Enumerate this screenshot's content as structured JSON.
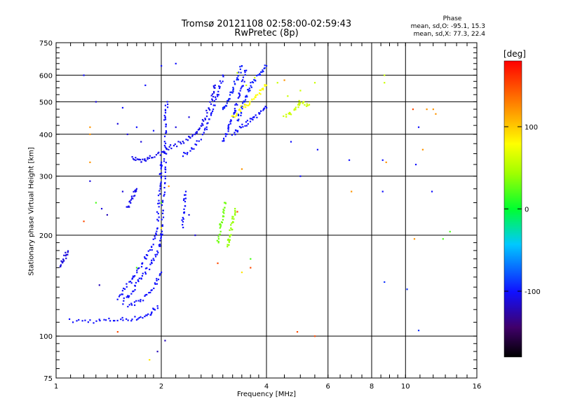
{
  "chart_data": {
    "type": "scatter",
    "title": "Tromsø 20121108 02:58:00-02:59:43",
    "subtitle": "RwPretec (8p)",
    "xlabel": "Frequency [MHz]",
    "ylabel": "Stationary phase Virtual Height [km]",
    "x_scale": "log",
    "y_scale": "log",
    "xlim": [
      1,
      16
    ],
    "ylim": [
      75,
      750
    ],
    "x_ticks": [
      1,
      2,
      4,
      6,
      8,
      10,
      16
    ],
    "x_tick_labels": [
      "1",
      "2",
      "4",
      "6",
      "8",
      "10",
      "16"
    ],
    "y_ticks": [
      75,
      100,
      200,
      300,
      400,
      500,
      600,
      750
    ],
    "y_tick_labels": [
      "75",
      "100",
      "200",
      "300",
      "400",
      "500",
      "600",
      "750"
    ],
    "grid": true,
    "phase_stats": {
      "title": "Phase",
      "o_line": "mean, sd,O: -95.1, 15.3",
      "x_line": "mean, sd,X:  77.3, 22.4"
    },
    "colorbar": {
      "label": "[deg]",
      "range": [
        -180,
        180
      ],
      "ticks": [
        100,
        0,
        -100
      ],
      "tick_labels": [
        "100",
        "0",
        "-100"
      ],
      "colormap": "rainbow (black-purple-blue-cyan-green-yellow-red)"
    },
    "traces": [
      {
        "kind": "line",
        "phase": -100,
        "points": [
          [
            1.1,
            111
          ],
          [
            1.3,
            111
          ],
          [
            1.5,
            112
          ],
          [
            1.7,
            113
          ],
          [
            1.85,
            116
          ],
          [
            1.95,
            123
          ]
        ]
      },
      {
        "kind": "line",
        "phase": -100,
        "points": [
          [
            1.55,
            126
          ],
          [
            1.65,
            136
          ],
          [
            1.75,
            148
          ],
          [
            1.85,
            162
          ],
          [
            1.95,
            178
          ],
          [
            2.0,
            200
          ]
        ]
      },
      {
        "kind": "line",
        "phase": -100,
        "points": [
          [
            1.5,
            130
          ],
          [
            1.6,
            142
          ],
          [
            1.7,
            155
          ],
          [
            1.8,
            170
          ],
          [
            1.9,
            190
          ],
          [
            1.95,
            210
          ]
        ]
      },
      {
        "kind": "line",
        "phase": -100,
        "points": [
          [
            1.6,
            122
          ],
          [
            1.75,
            128
          ],
          [
            1.9,
            140
          ],
          [
            2.0,
            155
          ]
        ]
      },
      {
        "kind": "line",
        "phase": -100,
        "points": [
          [
            2.0,
            200
          ],
          [
            2.02,
            240
          ],
          [
            2.04,
            290
          ],
          [
            2.05,
            340
          ],
          [
            2.06,
            400
          ],
          [
            2.05,
            450
          ],
          [
            2.08,
            500
          ]
        ]
      },
      {
        "kind": "line",
        "phase": -100,
        "points": [
          [
            1.95,
            220
          ],
          [
            1.97,
            260
          ],
          [
            1.99,
            300
          ],
          [
            2.0,
            330
          ]
        ]
      },
      {
        "kind": "line",
        "phase": -105,
        "points": [
          [
            1.65,
            340
          ],
          [
            1.75,
            334
          ],
          [
            1.85,
            340
          ],
          [
            2.0,
            352
          ],
          [
            2.1,
            365
          ],
          [
            2.3,
            380
          ],
          [
            2.5,
            400
          ],
          [
            2.6,
            420
          ],
          [
            2.7,
            460
          ],
          [
            2.8,
            520
          ],
          [
            2.85,
            560
          ]
        ]
      },
      {
        "kind": "line",
        "phase": -100,
        "points": [
          [
            2.3,
            345
          ],
          [
            2.5,
            370
          ],
          [
            2.7,
            420
          ],
          [
            2.8,
            470
          ],
          [
            2.9,
            530
          ],
          [
            3.0,
            600
          ]
        ]
      },
      {
        "kind": "line",
        "phase": -95,
        "points": [
          [
            3.0,
            470
          ],
          [
            3.1,
            500
          ],
          [
            3.2,
            540
          ],
          [
            3.3,
            590
          ],
          [
            3.4,
            640
          ]
        ]
      },
      {
        "kind": "line",
        "phase": -100,
        "points": [
          [
            3.0,
            380
          ],
          [
            3.1,
            410
          ],
          [
            3.2,
            450
          ],
          [
            3.3,
            500
          ],
          [
            3.4,
            560
          ],
          [
            3.5,
            620
          ]
        ]
      },
      {
        "kind": "line",
        "phase": -95,
        "points": [
          [
            3.3,
            440
          ],
          [
            3.4,
            480
          ],
          [
            3.5,
            520
          ],
          [
            3.6,
            560
          ],
          [
            3.8,
            600
          ],
          [
            4.0,
            640
          ]
        ]
      },
      {
        "kind": "line",
        "phase": -100,
        "points": [
          [
            3.2,
            400
          ],
          [
            3.4,
            420
          ],
          [
            3.6,
            440
          ],
          [
            3.8,
            460
          ],
          [
            4.0,
            480
          ]
        ]
      },
      {
        "kind": "line",
        "phase": 80,
        "points": [
          [
            3.2,
            450
          ],
          [
            3.4,
            480
          ],
          [
            3.6,
            500
          ],
          [
            3.8,
            530
          ],
          [
            4.0,
            560
          ]
        ]
      },
      {
        "kind": "line",
        "phase": -105,
        "points": [
          [
            1.6,
            240
          ],
          [
            1.65,
            260
          ],
          [
            1.7,
            275
          ]
        ]
      },
      {
        "kind": "line",
        "phase": -100,
        "points": [
          [
            2.3,
            210
          ],
          [
            2.32,
            240
          ],
          [
            2.35,
            270
          ]
        ]
      },
      {
        "kind": "line",
        "phase": 30,
        "points": [
          [
            2.9,
            190
          ],
          [
            2.95,
            210
          ],
          [
            3.0,
            230
          ],
          [
            3.05,
            250
          ]
        ]
      },
      {
        "kind": "line",
        "phase": 40,
        "points": [
          [
            3.1,
            185
          ],
          [
            3.15,
            200
          ],
          [
            3.2,
            220
          ],
          [
            3.25,
            240
          ]
        ]
      },
      {
        "kind": "line",
        "phase": -110,
        "points": [
          [
            1.03,
            160
          ],
          [
            1.05,
            170
          ],
          [
            1.08,
            178
          ]
        ]
      },
      {
        "kind": "line",
        "phase": 60,
        "points": [
          [
            4.5,
            450
          ],
          [
            4.8,
            470
          ],
          [
            5.0,
            500
          ],
          [
            5.3,
            490
          ]
        ]
      },
      {
        "kind": "scatter",
        "phase": -100,
        "points": [
          [
            1.2,
            600
          ],
          [
            1.55,
            480
          ],
          [
            1.8,
            560
          ],
          [
            2.0,
            640
          ],
          [
            2.2,
            650
          ],
          [
            1.7,
            420
          ],
          [
            1.9,
            410
          ]
        ]
      },
      {
        "kind": "scatter",
        "phase": -110,
        "points": [
          [
            1.3,
            500
          ],
          [
            1.5,
            430
          ],
          [
            1.6,
            400
          ],
          [
            1.75,
            380
          ],
          [
            2.2,
            420
          ],
          [
            2.4,
            450
          ]
        ]
      },
      {
        "kind": "scatter",
        "phase": -110,
        "points": [
          [
            1.25,
            290
          ],
          [
            1.35,
            240
          ],
          [
            1.55,
            270
          ],
          [
            2.5,
            200
          ],
          [
            2.4,
            230
          ]
        ]
      },
      {
        "kind": "scatter",
        "phase": -100,
        "points": [
          [
            4.7,
            380
          ],
          [
            5.0,
            300
          ],
          [
            5.6,
            360
          ],
          [
            6.9,
            335
          ],
          [
            8.6,
            270
          ],
          [
            8.6,
            335
          ],
          [
            10.9,
            420
          ],
          [
            10.7,
            325
          ],
          [
            11.9,
            270
          ]
        ]
      },
      {
        "kind": "scatter",
        "phase": -90,
        "points": [
          [
            8.7,
            145
          ],
          [
            10.1,
            138
          ],
          [
            10.9,
            104
          ]
        ]
      },
      {
        "kind": "scatter",
        "phase": 60,
        "points": [
          [
            3.3,
            610
          ],
          [
            3.5,
            560
          ],
          [
            3.7,
            590
          ],
          [
            4.3,
            570
          ],
          [
            4.6,
            520
          ],
          [
            5.0,
            540
          ],
          [
            5.5,
            570
          ],
          [
            8.7,
            600
          ],
          [
            8.7,
            570
          ]
        ]
      },
      {
        "kind": "scatter",
        "phase": 120,
        "points": [
          [
            1.25,
            420
          ],
          [
            1.25,
            400
          ],
          [
            1.25,
            330
          ],
          [
            2.1,
            280
          ],
          [
            3.4,
            315
          ],
          [
            4.5,
            580
          ],
          [
            7.0,
            270
          ],
          [
            8.8,
            330
          ],
          [
            10.6,
            195
          ],
          [
            11.2,
            360
          ],
          [
            11.5,
            475
          ],
          [
            12.0,
            475
          ],
          [
            12.2,
            460
          ]
        ]
      },
      {
        "kind": "scatter",
        "phase": 150,
        "points": [
          [
            1.2,
            220
          ],
          [
            1.5,
            103
          ],
          [
            2.9,
            165
          ],
          [
            3.3,
            235
          ],
          [
            3.6,
            160
          ],
          [
            4.9,
            103
          ],
          [
            5.5,
            100
          ],
          [
            10.5,
            475
          ]
        ]
      },
      {
        "kind": "scatter",
        "phase": 20,
        "points": [
          [
            1.3,
            250
          ],
          [
            1.7,
            160
          ],
          [
            2.0,
            250
          ],
          [
            3.6,
            170
          ],
          [
            12.8,
            195
          ],
          [
            13.4,
            205
          ]
        ]
      },
      {
        "kind": "scatter",
        "phase": 90,
        "points": [
          [
            1.85,
            85
          ],
          [
            2.0,
            210
          ],
          [
            3.4,
            155
          ]
        ]
      },
      {
        "kind": "scatter",
        "phase": -120,
        "points": [
          [
            1.33,
            142
          ],
          [
            1.4,
            230
          ],
          [
            1.95,
            90
          ],
          [
            2.05,
            97
          ]
        ]
      }
    ]
  }
}
